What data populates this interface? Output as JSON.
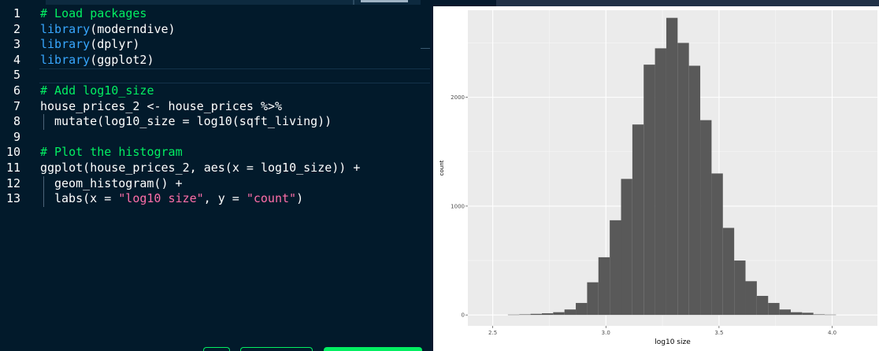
{
  "editor": {
    "lines": [
      {
        "num": "1",
        "indent": 0,
        "guide": false,
        "tokens": [
          {
            "t": "# Load packages",
            "c": "comment"
          }
        ]
      },
      {
        "num": "2",
        "indent": 0,
        "guide": false,
        "tokens": [
          {
            "t": "library",
            "c": "keyword"
          },
          {
            "t": "(moderndive)",
            "c": "plain"
          }
        ]
      },
      {
        "num": "3",
        "indent": 0,
        "guide": false,
        "tokens": [
          {
            "t": "library",
            "c": "keyword"
          },
          {
            "t": "(dplyr)",
            "c": "plain"
          }
        ]
      },
      {
        "num": "4",
        "indent": 0,
        "guide": false,
        "tokens": [
          {
            "t": "library",
            "c": "keyword"
          },
          {
            "t": "(ggplot2)",
            "c": "plain"
          }
        ]
      },
      {
        "num": "5",
        "indent": 0,
        "guide": false,
        "tokens": []
      },
      {
        "num": "6",
        "indent": 0,
        "guide": false,
        "tokens": [
          {
            "t": "# Add log10_size",
            "c": "comment"
          }
        ]
      },
      {
        "num": "7",
        "indent": 0,
        "guide": false,
        "tokens": [
          {
            "t": "house_prices_2 <- house_prices %>%",
            "c": "plain"
          }
        ]
      },
      {
        "num": "8",
        "indent": 2,
        "guide": true,
        "tokens": [
          {
            "t": "mutate(log10_size = log10(sqft_living))",
            "c": "plain"
          }
        ]
      },
      {
        "num": "9",
        "indent": 0,
        "guide": false,
        "tokens": []
      },
      {
        "num": "10",
        "indent": 0,
        "guide": false,
        "tokens": [
          {
            "t": "# Plot the histogram",
            "c": "comment"
          }
        ]
      },
      {
        "num": "11",
        "indent": 0,
        "guide": false,
        "tokens": [
          {
            "t": "ggplot(house_prices_2, aes(x = log10_size)) +",
            "c": "plain"
          }
        ]
      },
      {
        "num": "12",
        "indent": 2,
        "guide": true,
        "tokens": [
          {
            "t": "geom_histogram() +",
            "c": "plain"
          }
        ]
      },
      {
        "num": "13",
        "indent": 2,
        "guide": true,
        "tokens": [
          {
            "t": "labs(x = ",
            "c": "plain"
          },
          {
            "t": "\"log10 size\"",
            "c": "string"
          },
          {
            "t": ", y = ",
            "c": "plain"
          },
          {
            "t": "\"count\"",
            "c": "string"
          },
          {
            "t": ")",
            "c": "plain"
          }
        ]
      }
    ],
    "colors": {
      "comment": "#03ef62",
      "keyword": "#38a7ff",
      "string": "#ff6ea9",
      "plain": "#ffffff",
      "background": "#021a2b"
    }
  },
  "plot": {
    "chart_data": {
      "type": "bar",
      "subtype": "histogram",
      "xlabel": "log10 size",
      "ylabel": "count",
      "x_ticks": [
        2.5,
        3.0,
        3.5,
        4.0
      ],
      "x_tick_labels": [
        "2.5",
        "3.0",
        "3.5",
        "4.0"
      ],
      "y_ticks": [
        0,
        1000,
        2000
      ],
      "y_tick_labels": [
        "0",
        "1000",
        "2000"
      ],
      "xlim": [
        2.39,
        4.2
      ],
      "ylim": [
        -100,
        2800
      ],
      "bins": {
        "start": 2.567,
        "width": 0.05,
        "counts": [
          3,
          5,
          10,
          15,
          25,
          50,
          110,
          300,
          530,
          870,
          1250,
          1750,
          2300,
          2450,
          2730,
          2500,
          2290,
          1790,
          1300,
          800,
          500,
          310,
          175,
          110,
          50,
          25,
          20,
          5,
          3
        ]
      },
      "bar_color": "#595959",
      "panel_color": "#ebebeb",
      "grid": true
    }
  }
}
